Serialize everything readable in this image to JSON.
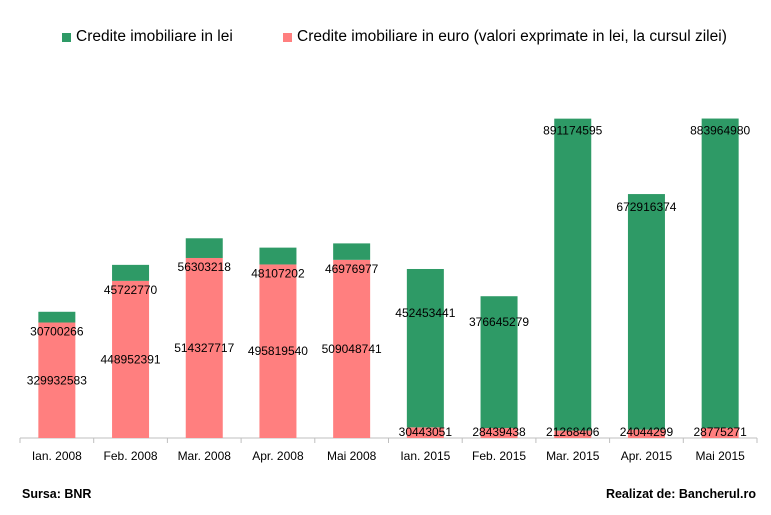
{
  "colors": {
    "lei": "#2E9A66",
    "euro": "#FF7F7F",
    "axis": "#BFBFBF"
  },
  "legend": {
    "lei_label": "Credite imobiliare in lei",
    "euro_label": "Credite imobiliare in euro (valori exprimate in lei, la cursul zilei)"
  },
  "footer": {
    "source": "Sursa: BNR",
    "credit": "Realizat de: Bancherul.ro"
  },
  "chart_data": {
    "type": "bar",
    "stacked": true,
    "categories": [
      "Ian. 2008",
      "Feb. 2008",
      "Mar. 2008",
      "Apr. 2008",
      "Mai 2008",
      "Ian. 2015",
      "Feb. 2015",
      "Mar. 2015",
      "Apr. 2015",
      "Mai 2015"
    ],
    "series": [
      {
        "name": "Credite imobiliare in euro (valori exprimate in lei, la cursul zilei)",
        "color": "#FF7F7F",
        "values": [
          329932583,
          448952391,
          514327717,
          495819540,
          509048741,
          30443051,
          28439438,
          21268406,
          24044299,
          28775271
        ]
      },
      {
        "name": "Credite imobiliare in lei",
        "color": "#2E9A66",
        "values": [
          30700266,
          45722770,
          56303218,
          48107202,
          46976977,
          452453441,
          376645279,
          891174595,
          672916374,
          883964980
        ]
      }
    ],
    "ylim": [
      0,
      1000000000
    ],
    "grid": false,
    "legend_position": "top"
  }
}
